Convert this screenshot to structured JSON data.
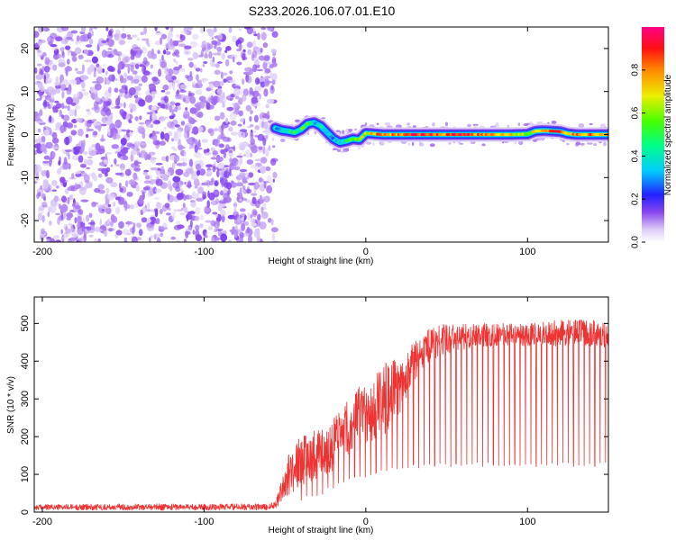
{
  "title": "S233.2026.106.07.01.E10",
  "chart_data": [
    {
      "type": "heatmap",
      "xlabel": "Height of straight line (km)",
      "ylabel": "Frequency (Hz)",
      "xlim": [
        -205,
        150
      ],
      "ylim": [
        -25,
        25
      ],
      "xticks": [
        -200,
        -100,
        0,
        100
      ],
      "yticks": [
        -20,
        -10,
        0,
        10,
        20
      ],
      "noise_region_x": [
        -205,
        -56
      ],
      "ridge": {
        "x": [
          -56,
          -52,
          -48,
          -44,
          -40,
          -36,
          -32,
          -28,
          -24,
          -20,
          -16,
          -12,
          -8,
          -4,
          0,
          4,
          10,
          20,
          30,
          40,
          50,
          60,
          70,
          80,
          90,
          100,
          105,
          110,
          115,
          120,
          125,
          130,
          140,
          150
        ],
        "y": [
          1.5,
          1.0,
          0.8,
          0.5,
          1.2,
          2.5,
          2.8,
          2.0,
          0.5,
          -1.0,
          -1.8,
          -1.5,
          -1.0,
          -1.2,
          0.3,
          0.2,
          0.0,
          0.0,
          0.0,
          0.0,
          0.0,
          0.0,
          0.0,
          0.0,
          0.0,
          0.1,
          0.8,
          0.9,
          0.8,
          0.7,
          0.2,
          0.0,
          0.0,
          0.0
        ],
        "amplitude": [
          0.3,
          0.4,
          0.4,
          0.5,
          0.5,
          0.5,
          0.4,
          0.4,
          0.3,
          0.3,
          0.4,
          0.5,
          0.5,
          0.6,
          0.7,
          0.7,
          0.8,
          0.8,
          0.9,
          0.9,
          0.8,
          0.9,
          0.8,
          0.8,
          0.7,
          0.6,
          0.7,
          0.8,
          0.9,
          0.8,
          0.7,
          0.8,
          0.8,
          0.7
        ]
      },
      "colorbar": {
        "label": "Normalized spectral amplitude",
        "range": [
          0,
          1
        ],
        "ticks": [
          "0.0",
          "0.2",
          "0.4",
          "0.6",
          "0.8"
        ]
      }
    },
    {
      "type": "line",
      "xlabel": "Height of straight line (km)",
      "ylabel": "SNR (10 * v/v)",
      "xlim": [
        -205,
        150
      ],
      "ylim": [
        0,
        570
      ],
      "xticks": [
        -200,
        -100,
        0,
        100
      ],
      "yticks": [
        0,
        100,
        200,
        300,
        400,
        500
      ],
      "series": [
        {
          "name": "SNR",
          "color": "#ee3333",
          "envelope_x": [
            -205,
            -150,
            -100,
            -60,
            -56,
            -50,
            -45,
            -40,
            -35,
            -30,
            -25,
            -20,
            -15,
            -10,
            -5,
            0,
            5,
            10,
            15,
            20,
            25,
            30,
            35,
            40,
            50,
            60,
            80,
            100,
            120,
            140,
            150
          ],
          "envelope_peak": [
            20,
            22,
            22,
            22,
            30,
            130,
            180,
            200,
            210,
            230,
            220,
            250,
            280,
            300,
            330,
            350,
            370,
            390,
            400,
            410,
            430,
            450,
            470,
            490,
            500,
            500,
            500,
            500,
            510,
            510,
            500
          ],
          "envelope_trough": [
            5,
            5,
            5,
            5,
            10,
            30,
            50,
            70,
            80,
            90,
            100,
            110,
            130,
            150,
            170,
            180,
            190,
            200,
            210,
            250,
            300,
            350,
            380,
            400,
            420,
            430,
            440,
            440,
            440,
            440,
            430
          ],
          "dip_floor": [
            0,
            0,
            0,
            0,
            5,
            10,
            20,
            30,
            35,
            40,
            50,
            60,
            70,
            80,
            85,
            90,
            95,
            100,
            105,
            110,
            115,
            115,
            115,
            115,
            120,
            120,
            120,
            120,
            120,
            120,
            120
          ],
          "dip_spacing_km": 3.3,
          "dip_start_km": -40,
          "samples": 1800
        }
      ]
    }
  ]
}
